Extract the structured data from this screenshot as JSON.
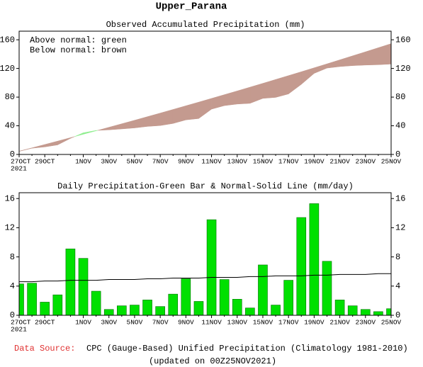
{
  "header": {
    "title": "Upper_Parana"
  },
  "chart_data": [
    {
      "type": "accumulated_area",
      "title": "Observed Accumulated Precipitation (mm)",
      "annotations": [
        "Above normal: green",
        "Below normal: brown"
      ],
      "categories": [
        "27OCT",
        null,
        "29OCT",
        null,
        null,
        "1NOV",
        null,
        "3NOV",
        null,
        "5NOV",
        null,
        "7NOV",
        null,
        "9NOV",
        null,
        "11NOV",
        null,
        "13NOV",
        null,
        "15NOV",
        null,
        "17NOV",
        null,
        "19NOV",
        null,
        "21NOV",
        null,
        "23NOV",
        null,
        "25NOV"
      ],
      "year": "2021",
      "observed": [
        4.3,
        8.7,
        10.5,
        13.3,
        22.4,
        30.2,
        33.5,
        34.3,
        35.6,
        37.0,
        39.1,
        40.3,
        43.2,
        48.2,
        50.1,
        63.2,
        68.1,
        70.3,
        71.3,
        78.2,
        79.6,
        84.4,
        97.8,
        113.1,
        120.5,
        122.6,
        123.9,
        124.7,
        125.2,
        126.1
      ],
      "normal": [
        4.6,
        9.2,
        13.9,
        18.6,
        23.4,
        28.2,
        33.0,
        37.9,
        42.8,
        47.7,
        52.7,
        57.7,
        62.8,
        67.9,
        73.0,
        78.2,
        83.4,
        88.6,
        93.9,
        99.2,
        104.6,
        110.0,
        115.4,
        120.9,
        126.4,
        132.0,
        137.6,
        143.2,
        148.9,
        154.6
      ],
      "above_color": "#90ee90",
      "below_color": "#c49a8f",
      "ylim": [
        0,
        172
      ],
      "yticks": [
        0,
        40,
        80,
        120,
        160
      ]
    },
    {
      "type": "bar_line",
      "title": "Daily Precipitation-Green Bar & Normal-Solid Line (mm/day)",
      "categories": [
        "27OCT",
        null,
        "29OCT",
        null,
        null,
        "1NOV",
        null,
        "3NOV",
        null,
        "5NOV",
        null,
        "7NOV",
        null,
        "9NOV",
        null,
        "11NOV",
        null,
        "13NOV",
        null,
        "15NOV",
        null,
        "17NOV",
        null,
        "19NOV",
        null,
        "21NOV",
        null,
        "23NOV",
        null,
        "25NOV"
      ],
      "year": "2021",
      "values": [
        4.3,
        4.4,
        1.8,
        2.8,
        9.1,
        7.8,
        3.3,
        0.8,
        1.3,
        1.4,
        2.1,
        1.2,
        2.9,
        5.0,
        1.9,
        13.1,
        4.9,
        2.2,
        1.0,
        6.9,
        1.4,
        4.8,
        13.4,
        15.3,
        7.4,
        2.1,
        1.3,
        0.8,
        0.5,
        0.9
      ],
      "color": "#00e000",
      "line_values": [
        4.6,
        4.6,
        4.7,
        4.7,
        4.8,
        4.8,
        4.8,
        4.9,
        4.9,
        4.9,
        5.0,
        5.0,
        5.1,
        5.1,
        5.1,
        5.2,
        5.2,
        5.2,
        5.3,
        5.3,
        5.4,
        5.4,
        5.4,
        5.5,
        5.5,
        5.6,
        5.6,
        5.6,
        5.7,
        5.7
      ],
      "line_color": "#000000",
      "ylim": [
        0,
        16.8
      ],
      "yticks": [
        0,
        4,
        8,
        12,
        16
      ]
    }
  ],
  "footer": {
    "source_label": "Data Source:",
    "source": "CPC (Gauge-Based) Unified Precipitation (Climatology 1981-2010)",
    "updated": "(updated on 00Z25NOV2021)"
  }
}
